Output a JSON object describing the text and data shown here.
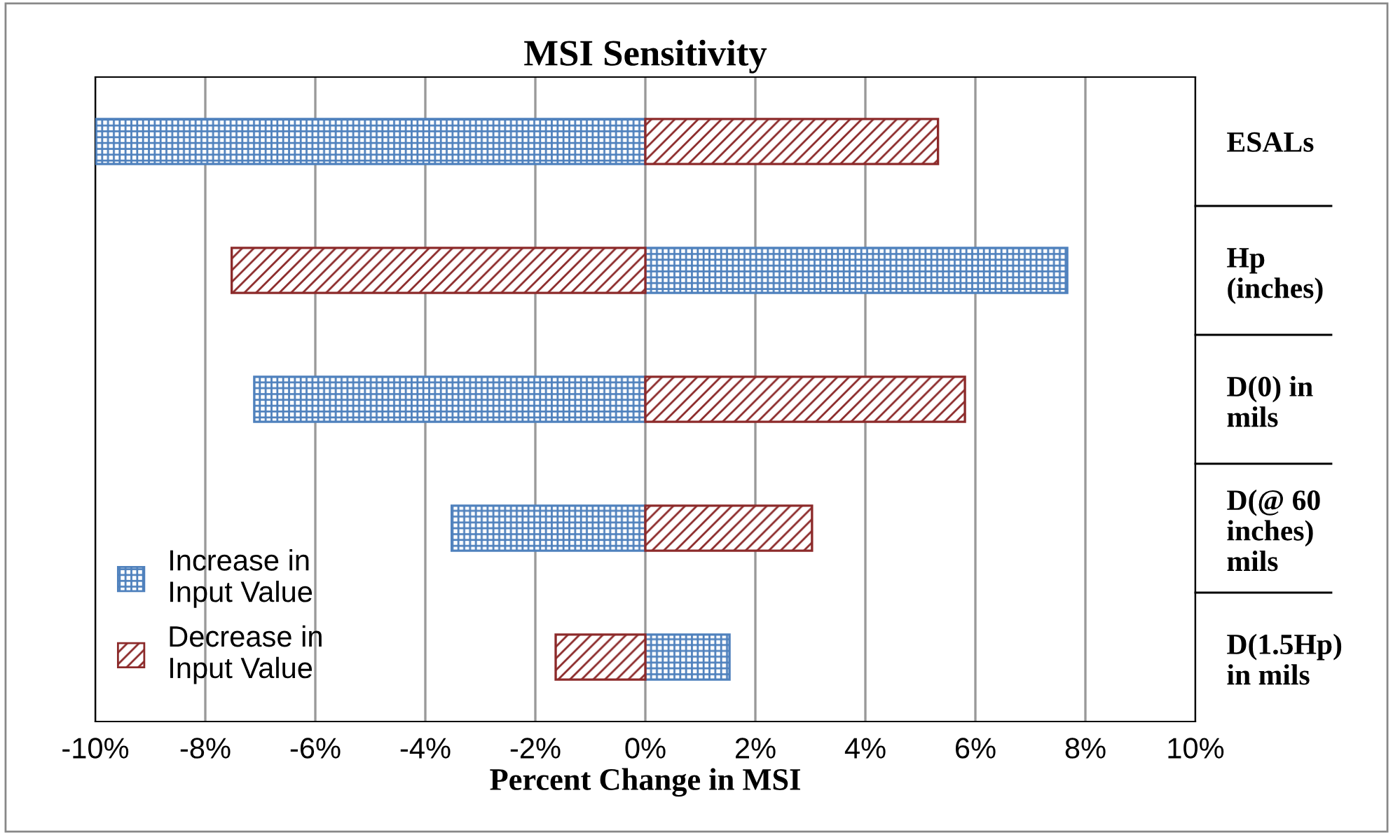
{
  "chart_data": {
    "type": "bar",
    "orientation": "horizontal",
    "title": "MSI Sensitivity",
    "xlabel": "Percent Change in MSI",
    "categories": [
      "ESALs",
      "Hp\n(inches)",
      "D(0) in\nmils",
      "D(@ 60\ninches)\nmils",
      "D(1.5Hp)\nin mils"
    ],
    "series": [
      {
        "name": "Increase in\nInput Value",
        "color": "#4f81bd",
        "values": [
          -10.0,
          7.67,
          -7.11,
          -3.52,
          1.53
        ]
      },
      {
        "name": "Decrease in\nInput Value",
        "color": "#8c2a2a",
        "values": [
          5.32,
          -7.52,
          5.81,
          3.03,
          -1.63
        ]
      }
    ],
    "xlim": [
      -10,
      10
    ],
    "xticks": [
      {
        "value": -10,
        "label": "-10%"
      },
      {
        "value": -8,
        "label": "-8%"
      },
      {
        "value": -6,
        "label": "-6%"
      },
      {
        "value": -4,
        "label": "-4%"
      },
      {
        "value": -2,
        "label": "-2%"
      },
      {
        "value": 0,
        "label": "0%"
      },
      {
        "value": 2,
        "label": "2%"
      },
      {
        "value": 4,
        "label": "4%"
      },
      {
        "value": 6,
        "label": "6%"
      },
      {
        "value": 8,
        "label": "8%"
      },
      {
        "value": 10,
        "label": "10%"
      }
    ],
    "grid": "x",
    "legend": "bottom left",
    "stacked": true
  }
}
